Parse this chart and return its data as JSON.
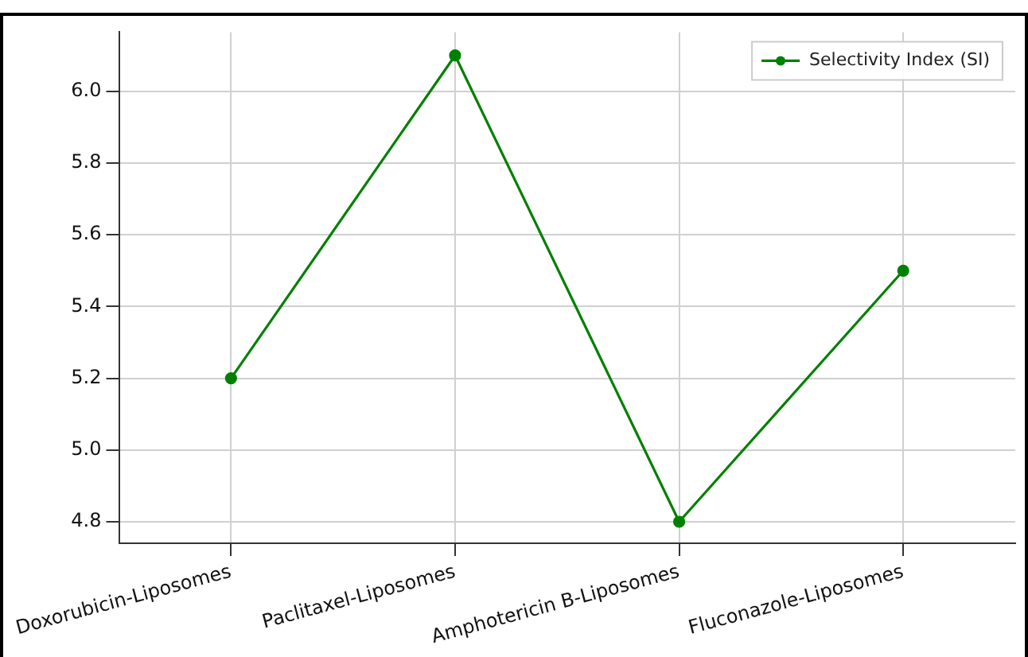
{
  "chart_data": {
    "type": "line",
    "categories": [
      "Doxorubicin-Liposomes",
      "Paclitaxel-Liposomes",
      "Amphotericin B-Liposomes",
      "Fluconazole-Liposomes"
    ],
    "series": [
      {
        "name": "Selectivity Index (SI)",
        "color": "#008000",
        "values": [
          5.2,
          6.1,
          4.8,
          5.5
        ]
      }
    ],
    "ylim": [
      4.74,
      6.165
    ],
    "yticks": [
      4.8,
      {
        "value": 5.0,
        "label": "5.0"
      },
      5.2,
      5.4,
      5.6,
      5.8,
      {
        "value": 6.0,
        "label": "6.0"
      }
    ],
    "grid": true,
    "legend": "top right",
    "marker": "circle",
    "line_style": "solid"
  }
}
